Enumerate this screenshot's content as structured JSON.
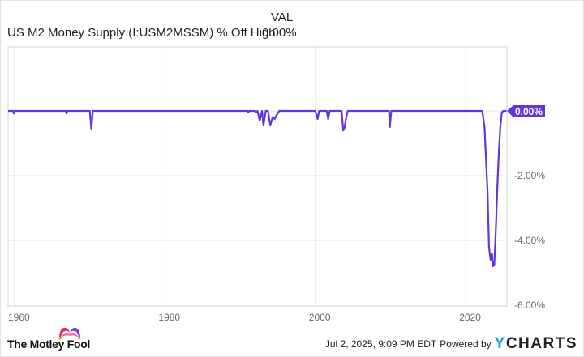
{
  "legend": {
    "column_header": "VAL",
    "series_name": "US M2 Money Supply (I:USM2MSSM) % Off High",
    "series_value": "0.00%"
  },
  "footer": {
    "brand": "The Motley Fool",
    "timestamp": "Jul 2, 2025, 9:09 PM EDT",
    "powered_by": "Powered by",
    "provider_prefix": "Y",
    "provider_rest": "CHARTS"
  },
  "colors": {
    "line": "#6236d8",
    "label_bg": "#6236d8",
    "grid": "#e5e5e5",
    "axis_text": "#666666"
  },
  "chart_data": {
    "type": "line",
    "title": "US M2 Money Supply (I:USM2MSSM) % Off High",
    "xlabel": "",
    "ylabel": "",
    "x_ticks": [
      "1960",
      "1980",
      "2000",
      "2020"
    ],
    "y_ticks": [
      "0.00%",
      "-2.00%",
      "-4.00%",
      "-6.00%"
    ],
    "ylim": [
      -6,
      0.5
    ],
    "xlim": [
      1959,
      2025.5
    ],
    "grid": true,
    "legend_position": "top-left",
    "last_value_label": "0.00%",
    "series": [
      {
        "name": "US M2 Money Supply (I:USM2MSSM) % Off High",
        "x": [
          1959.0,
          1959.8,
          1959.9,
          1960.0,
          1966.8,
          1966.9,
          1967.0,
          1970.0,
          1970.2,
          1970.4,
          1970.5,
          1991.0,
          1991.1,
          1991.2,
          1992.0,
          1992.1,
          1992.3,
          1992.6,
          1992.9,
          1993.1,
          1993.4,
          1993.7,
          1994.0,
          1994.3,
          1994.6,
          1994.8,
          1995.2,
          1995.5,
          2000.0,
          2000.3,
          2000.5,
          2001.5,
          2001.7,
          2001.9,
          2003.5,
          2003.7,
          2003.9,
          2004.1,
          2004.3,
          2009.8,
          2009.9,
          2010.1,
          2010.2,
          2022.2,
          2022.5,
          2022.9,
          2023.1,
          2023.3,
          2023.5,
          2023.6,
          2023.8,
          2024.0,
          2024.2,
          2024.4,
          2024.6,
          2024.8,
          2025.0,
          2025.2,
          2025.4
        ],
        "values": [
          0,
          0,
          -0.08,
          0,
          0,
          -0.08,
          0,
          0,
          -0.55,
          0,
          0,
          0,
          -0.05,
          0,
          0,
          -0.05,
          0,
          -0.3,
          0,
          -0.45,
          0,
          0,
          -0.45,
          -0.2,
          -0.25,
          -0.15,
          0,
          0,
          0,
          -0.25,
          0,
          0,
          -0.25,
          0,
          0,
          -0.6,
          -0.5,
          -0.2,
          0,
          0,
          -0.5,
          0,
          0,
          0,
          -0.5,
          -2.5,
          -4.2,
          -4.6,
          -4.4,
          -4.8,
          -4.75,
          -3.7,
          -2.4,
          -1.3,
          -0.5,
          -0.05,
          0,
          0,
          0
        ]
      }
    ]
  }
}
